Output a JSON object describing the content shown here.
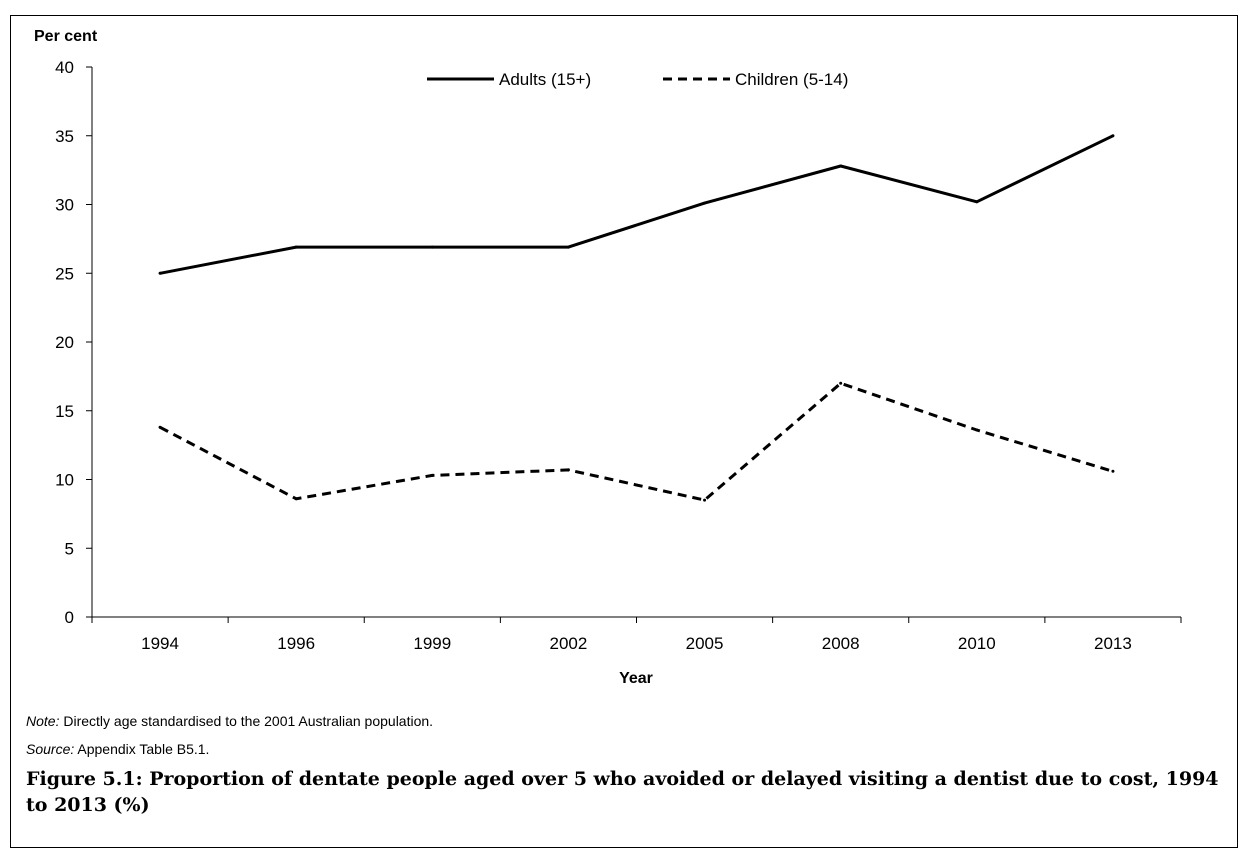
{
  "chart_data": {
    "type": "line",
    "ylabel": "Per cent",
    "xlabel": "Year",
    "categories": [
      "1994",
      "1996",
      "1999",
      "2002",
      "2005",
      "2008",
      "2010",
      "2013"
    ],
    "ylim": [
      0,
      40
    ],
    "yticks": [
      "0",
      "5",
      "10",
      "15",
      "20",
      "25",
      "30",
      "35",
      "40"
    ],
    "grid": false,
    "legend_position": "top-center",
    "series": [
      {
        "name": "Adults (15+)",
        "style": "solid",
        "color": "#000000",
        "values": [
          25.0,
          26.9,
          26.9,
          26.9,
          30.1,
          32.8,
          30.2,
          35.0
        ]
      },
      {
        "name": "Children (5-14)",
        "style": "dashed",
        "color": "#000000",
        "values": [
          13.8,
          8.6,
          10.3,
          10.7,
          8.5,
          17.0,
          13.6,
          10.6
        ]
      }
    ]
  },
  "note": {
    "label": "Note:",
    "text": " Directly age standardised to the 2001 Australian population."
  },
  "source": {
    "label": "Source:",
    "text": " Appendix Table B5.1."
  },
  "caption": "Figure 5.1: Proportion of dentate people aged over 5 who avoided or delayed visiting a dentist due to cost, 1994 to 2013 (%)"
}
